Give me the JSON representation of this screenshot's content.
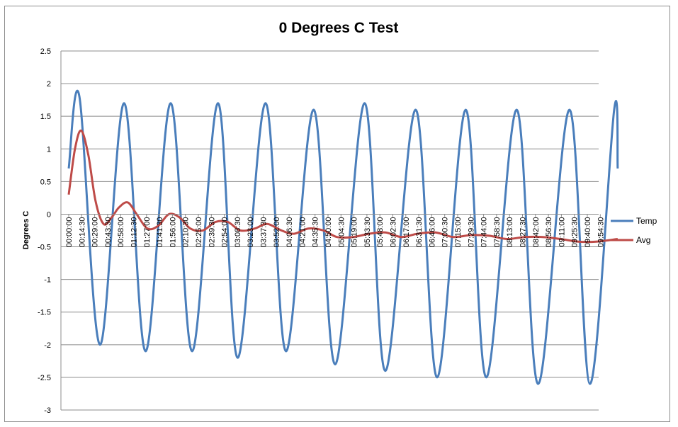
{
  "chart_data": {
    "type": "line",
    "title": "0 Degrees C Test",
    "ylabel": "Degrees C",
    "xlabel": "",
    "ylim": [
      -3,
      2.5
    ],
    "yticks": [
      2.5,
      2,
      1.5,
      1,
      0.5,
      0,
      -0.5,
      -1,
      -1.5,
      -2,
      -2.5,
      -3
    ],
    "grid": "horizontal",
    "legend": "right",
    "colors": {
      "Temp": "#4a7ebb",
      "Avg": "#be4b48"
    },
    "categories": [
      "00:00:00",
      "00:14:30",
      "00:29:00",
      "00:43:30",
      "00:58:00",
      "01:12:30",
      "01:27:00",
      "01:41:30",
      "01:56:00",
      "02:10:30",
      "02:25:00",
      "02:39:30",
      "02:54:00",
      "03:08:30",
      "03:23:00",
      "03:37:30",
      "03:52:00",
      "04:06:30",
      "04:21:00",
      "04:35:30",
      "04:50:00",
      "05:04:30",
      "05:19:00",
      "05:33:30",
      "05:48:00",
      "06:02:30",
      "06:17:00",
      "06:31:30",
      "06:46:00",
      "07:00:30",
      "07:15:00",
      "07:29:30",
      "07:44:00",
      "07:58:30",
      "08:13:00",
      "08:27:30",
      "08:42:00",
      "08:56:30",
      "09:11:00",
      "09:25:30",
      "09:40:00",
      "09:54:30"
    ],
    "series": [
      {
        "name": "Temp",
        "points": [
          [
            "00:00:00",
            0.7
          ],
          [
            "00:12:00",
            1.8
          ],
          [
            "00:35:00",
            -2.0
          ],
          [
            "01:02:00",
            1.7
          ],
          [
            "01:26:00",
            -2.1
          ],
          [
            "01:54:00",
            1.7
          ],
          [
            "02:18:00",
            -2.1
          ],
          [
            "02:47:00",
            1.7
          ],
          [
            "03:09:00",
            -2.2
          ],
          [
            "03:40:00",
            1.7
          ],
          [
            "04:03:00",
            -2.1
          ],
          [
            "04:34:00",
            1.6
          ],
          [
            "04:58:00",
            -2.3
          ],
          [
            "05:31:00",
            1.7
          ],
          [
            "05:54:00",
            -2.4
          ],
          [
            "06:28:00",
            1.6
          ],
          [
            "06:52:00",
            -2.5
          ],
          [
            "07:24:00",
            1.6
          ],
          [
            "07:47:00",
            -2.5
          ],
          [
            "08:21:00",
            1.6
          ],
          [
            "08:45:00",
            -2.6
          ],
          [
            "09:20:00",
            1.6
          ],
          [
            "09:43:00",
            -2.6
          ],
          [
            "10:10:00",
            1.6
          ],
          [
            "10:14:00",
            0.7
          ]
        ]
      },
      {
        "name": "Avg",
        "points": [
          [
            "00:00:00",
            0.3
          ],
          [
            "00:07:00",
            1.0
          ],
          [
            "00:14:00",
            1.28
          ],
          [
            "00:22:00",
            0.9
          ],
          [
            "00:30:00",
            0.2
          ],
          [
            "00:39:00",
            -0.15
          ],
          [
            "00:48:00",
            -0.05
          ],
          [
            "00:56:00",
            0.1
          ],
          [
            "01:06:00",
            0.18
          ],
          [
            "01:16:00",
            0.0
          ],
          [
            "01:28:00",
            -0.22
          ],
          [
            "01:40:00",
            -0.18
          ],
          [
            "01:52:00",
            0.0
          ],
          [
            "02:04:00",
            -0.05
          ],
          [
            "02:16:00",
            -0.22
          ],
          [
            "02:30:00",
            -0.25
          ],
          [
            "02:44:00",
            -0.12
          ],
          [
            "02:58:00",
            -0.12
          ],
          [
            "03:12:00",
            -0.25
          ],
          [
            "03:28:00",
            -0.22
          ],
          [
            "03:42:00",
            -0.15
          ],
          [
            "03:58:00",
            -0.25
          ],
          [
            "04:12:00",
            -0.3
          ],
          [
            "04:28:00",
            -0.22
          ],
          [
            "04:45:00",
            -0.25
          ],
          [
            "05:00:00",
            -0.35
          ],
          [
            "05:18:00",
            -0.35
          ],
          [
            "05:36:00",
            -0.3
          ],
          [
            "05:54:00",
            -0.28
          ],
          [
            "06:12:00",
            -0.35
          ],
          [
            "06:30:00",
            -0.3
          ],
          [
            "06:50:00",
            -0.28
          ],
          [
            "07:10:00",
            -0.35
          ],
          [
            "07:30:00",
            -0.32
          ],
          [
            "07:50:00",
            -0.33
          ],
          [
            "08:10:00",
            -0.38
          ],
          [
            "08:30:00",
            -0.35
          ],
          [
            "08:50:00",
            -0.35
          ],
          [
            "09:10:00",
            -0.38
          ],
          [
            "09:30:00",
            -0.42
          ],
          [
            "09:50:00",
            -0.42
          ],
          [
            "10:14:00",
            -0.38
          ]
        ]
      }
    ]
  }
}
